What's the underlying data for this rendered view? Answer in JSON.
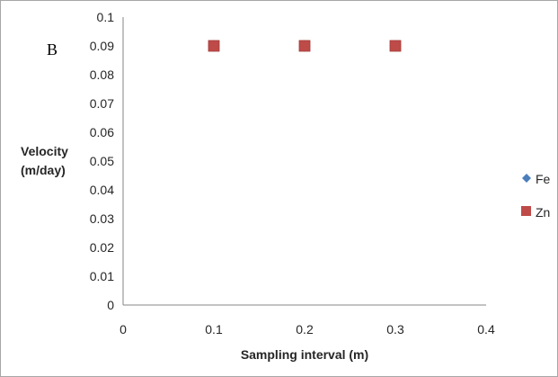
{
  "chart_data": {
    "type": "scatter",
    "panel_label": "B",
    "xlabel": "Sampling interval (m)",
    "ylabel_lines": [
      "Velocity",
      "(m/day)"
    ],
    "xlim": [
      0,
      0.4
    ],
    "ylim": [
      0,
      0.1
    ],
    "x_ticks": [
      "0",
      "0.1",
      "0.2",
      "0.3",
      "0.4"
    ],
    "y_ticks": [
      "0",
      "0.01",
      "0.02",
      "0.03",
      "0.04",
      "0.05",
      "0.06",
      "0.07",
      "0.08",
      "0.09",
      "0.1"
    ],
    "grid": false,
    "legend_position": "right",
    "series": [
      {
        "name": "Fe",
        "marker": "diamond",
        "color": "#4a7ebb",
        "x": [
          0.1,
          0.2,
          0.3
        ],
        "y": [
          0.09,
          0.09,
          0.09
        ]
      },
      {
        "name": "Zn",
        "marker": "square",
        "color": "#be4b48",
        "x": [
          0.1,
          0.2,
          0.3
        ],
        "y": [
          0.09,
          0.09,
          0.09
        ]
      }
    ]
  }
}
